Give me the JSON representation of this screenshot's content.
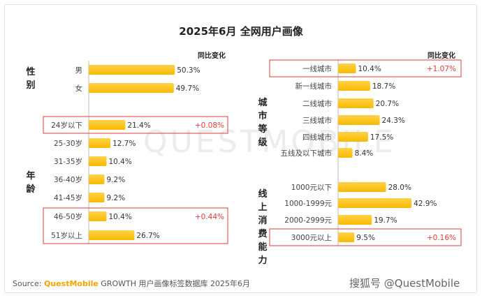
{
  "title": "2025年6月 全网用户画像",
  "colors": {
    "bar": "#f8b900",
    "highlight": "#e23b3b",
    "axis": "#bbbbbb"
  },
  "left_panel": {
    "compare_label": "同比变化",
    "groups": {
      "gender": "性别",
      "age": "年龄"
    }
  },
  "right_panel": {
    "compare_label": "同比变化",
    "groups": {
      "city": "城市等级",
      "consumption": "线上消费能力"
    }
  },
  "watermark": "QUESTMOBILE",
  "source": {
    "label": "Source:",
    "brand": "QuestMobile",
    "text": "GROWTH 用户画像标签数据库 2025年6月"
  },
  "credit": "搜狐号 @QuestMobile",
  "chart_data": [
    {
      "type": "bar",
      "orientation": "horizontal",
      "categories": [
        "男",
        "女",
        "24岁以下",
        "25-30岁",
        "31-35岁",
        "36-40岁",
        "41-45岁",
        "46-50岁",
        "51岁以上"
      ],
      "values": [
        50.3,
        49.7,
        21.4,
        12.7,
        10.4,
        9.2,
        9.2,
        10.4,
        26.7
      ],
      "labels": [
        "50.3%",
        "49.7%",
        "21.4%",
        "12.7%",
        "10.4%",
        "9.2%",
        "9.2%",
        "10.4%",
        "26.7%"
      ],
      "changes": [
        "",
        "",
        "+0.08%",
        "",
        "",
        "",
        "",
        "+0.44%",
        ""
      ]
    },
    {
      "type": "bar",
      "orientation": "horizontal",
      "categories": [
        "一线城市",
        "新一线城市",
        "二线城市",
        "三线城市",
        "四线城市",
        "五线及以下城市",
        "1000元以下",
        "1000-1999元",
        "2000-2999元",
        "3000元以上"
      ],
      "values": [
        10.4,
        18.7,
        20.7,
        24.3,
        17.5,
        8.4,
        28.0,
        42.9,
        19.7,
        9.5
      ],
      "labels": [
        "10.4%",
        "18.7%",
        "20.7%",
        "24.3%",
        "17.5%",
        "8.4%",
        "28.0%",
        "42.9%",
        "19.7%",
        "9.5%"
      ],
      "changes": [
        "+1.07%",
        "",
        "",
        "",
        "",
        "",
        "",
        "",
        "",
        "+0.16%"
      ]
    }
  ]
}
